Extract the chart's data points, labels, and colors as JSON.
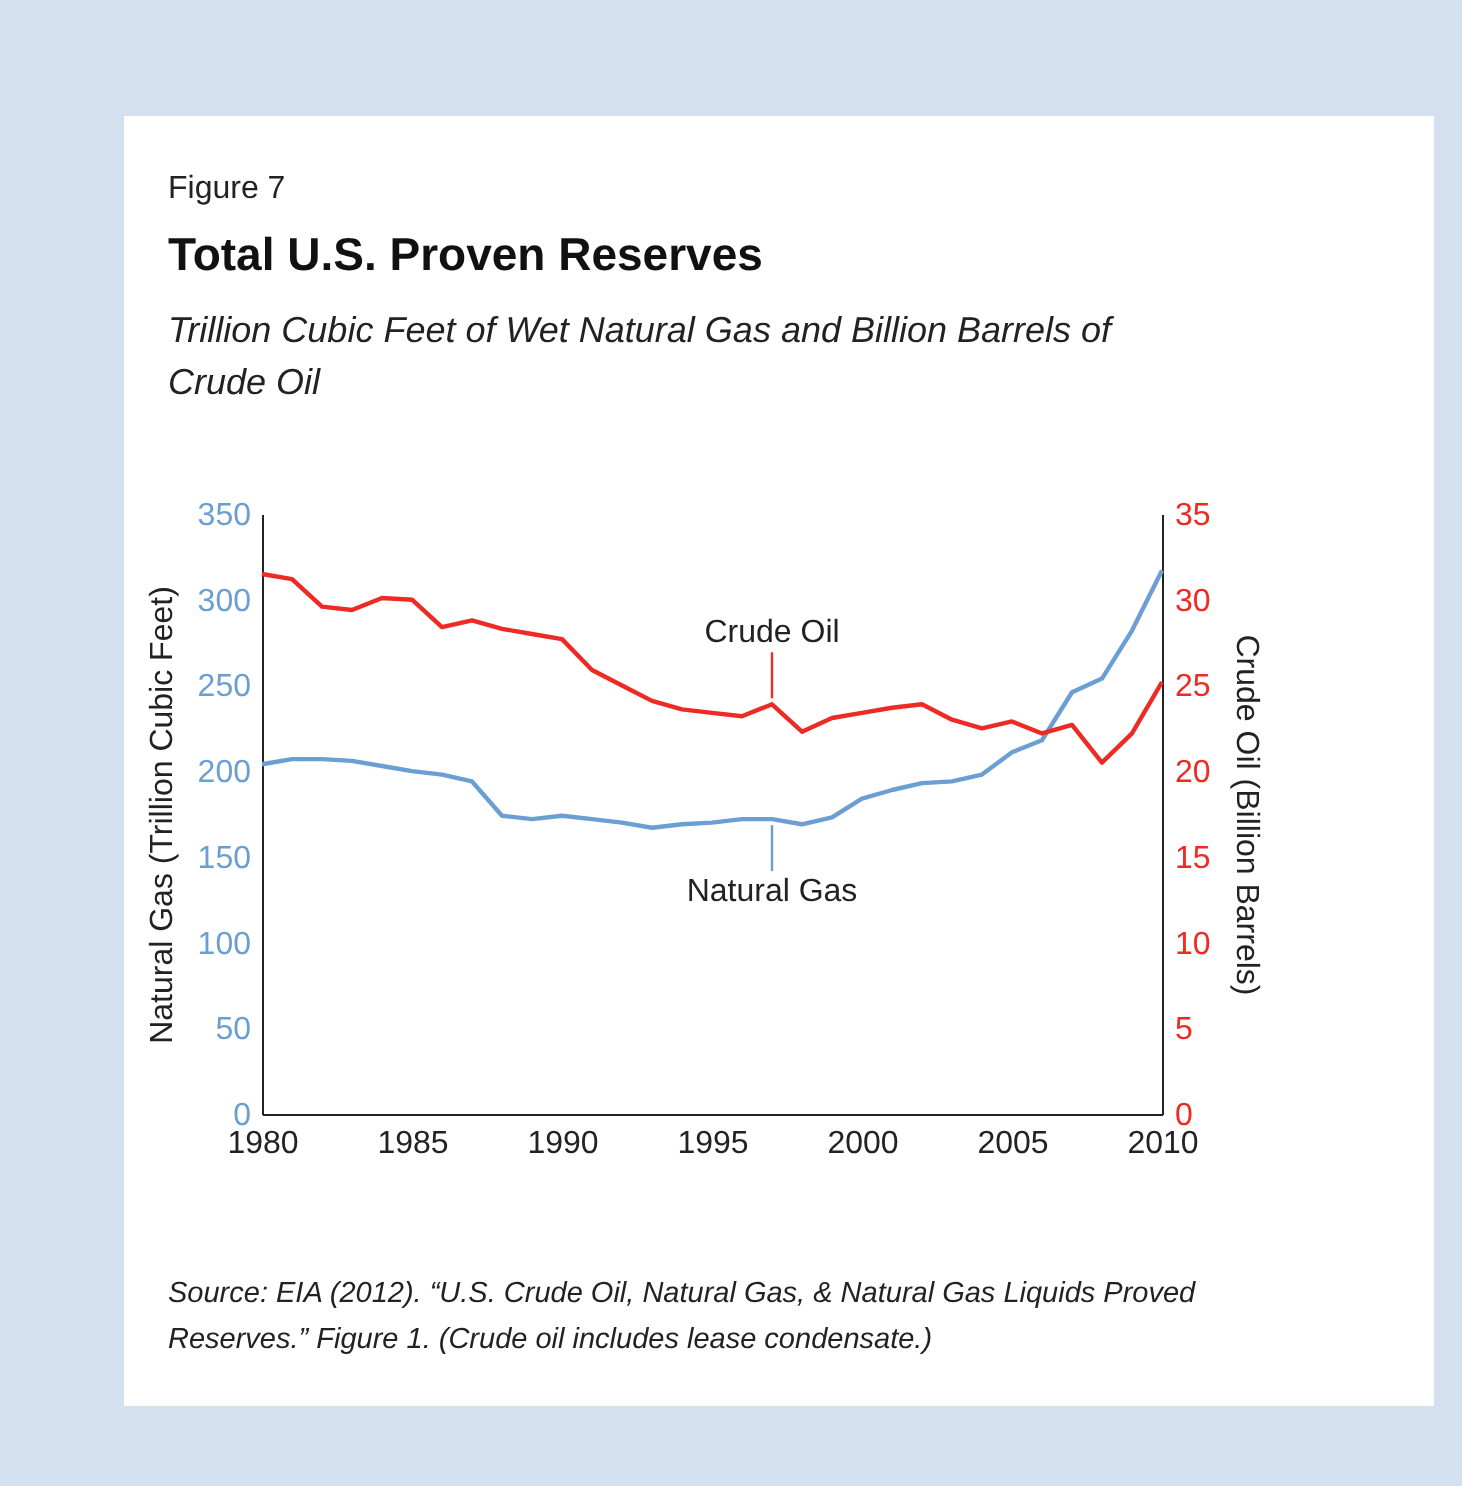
{
  "chart_data": {
    "type": "line",
    "title": "Total U.S. Proven Reserves",
    "subtitle": "Trillion Cubic Feet of Wet Natural Gas and Billion Barrels of Crude Oil",
    "ylabel": "Natural Gas (Trillion Cubic Feet)",
    "y2label": "Crude Oil (Billion Barrels)",
    "x": [
      1980,
      1981,
      1982,
      1983,
      1984,
      1985,
      1986,
      1987,
      1988,
      1989,
      1990,
      1991,
      1992,
      1993,
      1994,
      1995,
      1996,
      1997,
      1998,
      1999,
      2000,
      2001,
      2002,
      2003,
      2004,
      2005,
      2006,
      2007,
      2008,
      2009,
      2010
    ],
    "series": [
      {
        "name": "Natural Gas",
        "color": "#6b9fd3",
        "values": [
          204,
          207,
          207,
          206,
          203,
          200,
          198,
          194,
          174,
          172,
          174,
          172,
          170,
          167,
          169,
          170,
          172,
          172,
          169,
          173,
          184,
          189,
          193,
          194,
          198,
          211,
          218,
          246,
          254,
          282,
          317
        ]
      },
      {
        "name": "Crude Oil",
        "color": "#ee2a24",
        "axis": "y2",
        "values": [
          31.5,
          31.2,
          29.6,
          29.4,
          30.1,
          30.0,
          28.4,
          28.8,
          28.3,
          28.0,
          27.7,
          25.9,
          25.0,
          24.1,
          23.6,
          23.4,
          23.2,
          23.9,
          22.3,
          23.1,
          23.4,
          23.7,
          23.9,
          23.0,
          22.5,
          22.9,
          22.2,
          22.7,
          20.5,
          22.2,
          25.2
        ]
      }
    ],
    "xlim": [
      1980,
      2010
    ],
    "xticks": [
      1980,
      1985,
      1990,
      1995,
      2000,
      2005,
      2010
    ],
    "ylim": [
      0,
      350
    ],
    "yticks": [
      0,
      50,
      100,
      150,
      200,
      250,
      300,
      350
    ],
    "y2lim": [
      0,
      35
    ],
    "y2ticks": [
      0,
      5,
      10,
      15,
      20,
      25,
      30,
      35
    ],
    "grid": false,
    "annotations": [
      "Figure 7",
      "Source: EIA (2012). “U.S. Crude Oil, Natural Gas, & Natural Gas Liquids Proved Reserves.” Figure 1. (Crude oil includes lease condensate.)"
    ]
  }
}
